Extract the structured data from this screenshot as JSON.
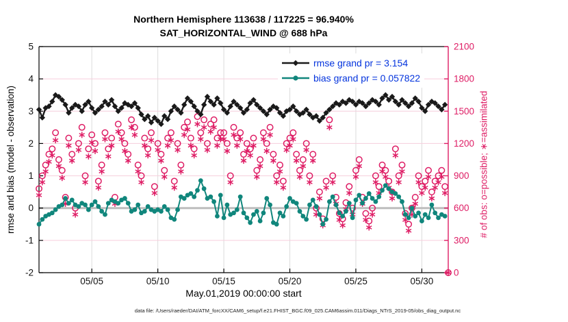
{
  "figure": {
    "title_line1": "Northern Hemisphere 113638 / 117225 = 96.940%",
    "title_line2": "SAT_HORIZONTAL_WIND @ 688 hPa",
    "footer": "data file: /Users/raeder/DAI/ATM_forcXX/CAM6_setup/f.e21.FHIST_BGC.f09_025.CAM6assim.011/Diags_NTrS_2019-05/obs_diag_output.nc"
  },
  "axes": {
    "left_label": "rmse and bias (model - observation)",
    "right_label": "# of obs: o=possible; ∗=assimilated",
    "x_label": "May.01,2019 00:00:00 start",
    "left_ticks": [
      -2,
      -1,
      0,
      1,
      2,
      3,
      4,
      5
    ],
    "right_ticks": [
      0,
      300,
      600,
      900,
      1200,
      1500,
      1800,
      2100
    ],
    "x_ticks": [
      {
        "label": "05/05",
        "day": 4
      },
      {
        "label": "05/10",
        "day": 9
      },
      {
        "label": "05/15",
        "day": 14
      },
      {
        "label": "05/20",
        "day": 19
      },
      {
        "label": "05/25",
        "day": 24
      },
      {
        "label": "05/30",
        "day": 29
      }
    ]
  },
  "legend": {
    "rmse_label": "rmse grand pr = 3.154",
    "bias_label": "bias grand pr = 0.057822"
  },
  "colors": {
    "rmse": "#1a1a1a",
    "bias": "#10867C",
    "obs": "#DE1C64",
    "legend_text": "#0333DD",
    "grid_h": "#F6CEDC",
    "grid_v": "#DBDBDB",
    "zero_line": "#BDBDBD",
    "axis": "#000000"
  },
  "chart_data": {
    "type": "line",
    "title": "Northern Hemisphere 113638 / 117225 = 96.940% | SAT_HORIZONTAL_WIND @ 688 hPa",
    "xlabel": "May.01,2019 00:00:00 start",
    "ylabel_left": "rmse and bias (model - observation)",
    "ylabel_right": "# of obs: o=possible; ∗=assimilated",
    "x_start": "2019-05-01 00:00",
    "x_step_days": 0.25,
    "x_range_days": [
      0,
      31
    ],
    "ylim_left": [
      -2,
      5
    ],
    "ylim_right": [
      0,
      2100
    ],
    "grid": true,
    "legend_position": "top-right-inside",
    "rmse_grand": 3.154,
    "bias_grand": 0.057822,
    "series": [
      {
        "name": "rmse",
        "axis": "left",
        "marker": "diamond",
        "values": [
          3.05,
          2.8,
          3.1,
          3.15,
          3.3,
          3.5,
          3.45,
          3.35,
          3.2,
          2.95,
          3.1,
          3.2,
          3.15,
          3.0,
          3.2,
          3.3,
          3.1,
          2.95,
          3.05,
          3.15,
          3.3,
          3.2,
          3.35,
          3.15,
          3.0,
          3.1,
          3.25,
          3.2,
          3.15,
          3.25,
          3.1,
          2.9,
          2.75,
          2.85,
          2.65,
          2.8,
          2.7,
          2.6,
          2.85,
          2.75,
          3.0,
          3.15,
          3.05,
          2.95,
          3.2,
          3.4,
          3.3,
          3.15,
          3.0,
          2.9,
          3.2,
          3.45,
          3.3,
          3.2,
          3.4,
          3.25,
          3.05,
          2.95,
          3.15,
          3.3,
          3.2,
          3.1,
          2.95,
          3.05,
          3.25,
          3.35,
          3.2,
          3.1,
          3.0,
          2.9,
          3.05,
          3.15,
          3.1,
          2.95,
          2.85,
          3.0,
          3.05,
          3.15,
          3.0,
          2.9,
          2.95,
          3.05,
          2.9,
          2.8,
          2.85,
          2.7,
          2.8,
          2.95,
          3.05,
          3.15,
          3.25,
          3.2,
          3.3,
          3.25,
          3.35,
          3.3,
          3.2,
          3.3,
          3.25,
          3.15,
          3.25,
          3.35,
          3.3,
          3.2,
          3.4,
          3.5,
          3.35,
          3.45,
          3.3,
          3.2,
          3.35,
          3.25,
          3.15,
          3.25,
          3.4,
          3.3,
          3.1,
          3.0,
          3.2,
          3.3,
          3.25,
          3.15,
          3.05,
          3.2
        ]
      },
      {
        "name": "bias",
        "axis": "left",
        "marker": "circle-filled",
        "values": [
          -0.5,
          -0.35,
          -0.25,
          -0.2,
          -0.15,
          -0.05,
          0.05,
          0.1,
          0.3,
          0.15,
          0.25,
          0.1,
          0.05,
          0.15,
          0.1,
          -0.05,
          0.1,
          0.2,
          0.05,
          -0.1,
          -0.2,
          0.15,
          0.25,
          0.2,
          0.15,
          0.25,
          0.3,
          0.15,
          -0.1,
          -0.05,
          0.1,
          -0.15,
          -0.1,
          0.05,
          -0.05,
          -0.1,
          -0.05,
          -0.1,
          0.05,
          -0.05,
          -0.3,
          -0.35,
          -0.05,
          0.35,
          0.3,
          0.4,
          0.45,
          0.35,
          0.55,
          0.85,
          0.6,
          0.3,
          0.35,
          0.2,
          -0.25,
          0.4,
          -0.3,
          0.1,
          -0.2,
          -0.15,
          -0.05,
          0.35,
          -0.15,
          -0.3,
          -0.45,
          -0.2,
          -0.1,
          -0.4,
          -0.15,
          0.3,
          0.1,
          -0.45,
          -0.5,
          -0.15,
          -0.25,
          0.05,
          0.3,
          0.2,
          0.15,
          -0.1,
          -0.25,
          -0.35,
          0.1,
          0.25,
          0.05,
          -0.2,
          -0.5,
          -0.35,
          0.2,
          0.35,
          0.1,
          -0.15,
          -0.25,
          -0.1,
          0.15,
          -0.3,
          0.25,
          0.4,
          0.15,
          0.3,
          0.45,
          0.3,
          0.2,
          0.35,
          0.55,
          0.7,
          0.6,
          0.5,
          0.45,
          0.35,
          0.2,
          -0.2,
          -0.3,
          0.0,
          -0.25,
          -0.15,
          -0.4,
          -0.2,
          -0.3,
          0.1,
          -0.15,
          -0.3,
          -0.2,
          -0.25
        ]
      },
      {
        "name": "possible",
        "axis": "right",
        "marker": "circle-open",
        "values": [
          780,
          900,
          1000,
          1100,
          1150,
          1300,
          1050,
          950,
          700,
          1250,
          1100,
          600,
          1200,
          1350,
          900,
          1150,
          1280,
          1200,
          850,
          1000,
          1300,
          1150,
          1250,
          700,
          1380,
          1300,
          1200,
          1100,
          1420,
          1350,
          1000,
          900,
          1250,
          1150,
          1300,
          800,
          1200,
          1100,
          950,
          1250,
          1300,
          850,
          1200,
          1000,
          1350,
          1400,
          1250,
          1150,
          1450,
          1300,
          1420,
          1200,
          1380,
          1420,
          1250,
          1300,
          1300,
          1200,
          900,
          1350,
          1250,
          1300,
          1100,
          1200,
          1150,
          1250,
          950,
          1050,
          1300,
          1200,
          1350,
          1100,
          900,
          1000,
          850,
          1200,
          1250,
          1300,
          1100,
          950,
          1050,
          1200,
          900,
          1100,
          600,
          750,
          500,
          850,
          1420,
          900,
          700,
          550,
          500,
          650,
          800,
          600,
          950,
          1050,
          700,
          550,
          480,
          600,
          900,
          800,
          1000,
          950,
          850,
          750,
          1150,
          900,
          1000,
          550,
          450,
          600,
          700,
          900,
          800,
          850,
          950,
          750,
          850,
          900,
          950,
          800,
          0
        ]
      },
      {
        "name": "assimilated",
        "axis": "right",
        "marker": "asterisk",
        "values": [
          720,
          840,
          940,
          1030,
          1090,
          1230,
          990,
          880,
          640,
          1180,
          1040,
          540,
          1140,
          1280,
          840,
          1080,
          1210,
          1130,
          790,
          940,
          1240,
          1080,
          1180,
          640,
          1310,
          1240,
          1130,
          1040,
          1350,
          1280,
          940,
          840,
          1180,
          1090,
          1230,
          740,
          1140,
          1040,
          890,
          1180,
          1230,
          790,
          1140,
          940,
          1280,
          1330,
          1180,
          1090,
          1380,
          1240,
          1350,
          1140,
          1310,
          1350,
          1180,
          1240,
          1240,
          1130,
          840,
          1280,
          1180,
          1240,
          1040,
          1130,
          1090,
          1180,
          890,
          990,
          1240,
          1130,
          1280,
          1040,
          840,
          940,
          790,
          1140,
          1180,
          1240,
          1040,
          890,
          990,
          1140,
          840,
          1040,
          540,
          690,
          440,
          790,
          1350,
          840,
          640,
          490,
          440,
          590,
          740,
          540,
          890,
          990,
          640,
          490,
          420,
          540,
          840,
          740,
          940,
          890,
          790,
          690,
          1090,
          840,
          940,
          490,
          390,
          540,
          640,
          840,
          740,
          790,
          890,
          690,
          790,
          840,
          890,
          740,
          0
        ]
      }
    ]
  }
}
